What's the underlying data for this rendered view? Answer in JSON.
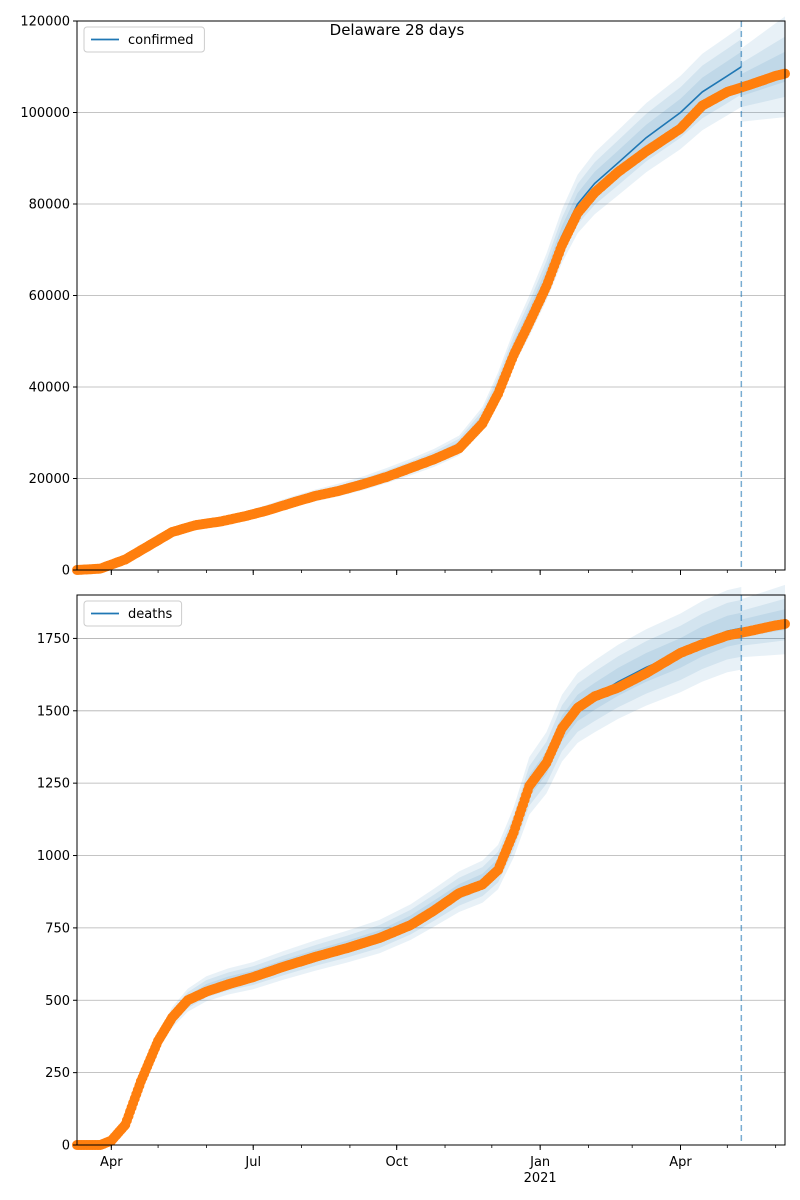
{
  "figure": {
    "title": "Delaware 28 days"
  },
  "colors": {
    "model": "#1f77b4",
    "observed": "#ff7f0e",
    "band": "#1f77b4",
    "grid": "#b0b0b0",
    "cutoff": "#1f77b4"
  },
  "chart_data": [
    {
      "type": "line",
      "title": "Delaware 28 days",
      "legend": {
        "label": "confirmed",
        "placement": "top-left"
      },
      "xlabel": "",
      "ylabel": "",
      "x_ticks": [
        "Apr",
        "Jul",
        "Oct",
        "Jan",
        "Apr"
      ],
      "x_tick_year": "2021",
      "x_tick_dates": [
        "2020-04-01",
        "2020-07-01",
        "2020-10-01",
        "2021-01-01",
        "2021-04-01"
      ],
      "xlim": [
        "2020-03-10",
        "2021-06-07"
      ],
      "ylim": [
        0,
        120000
      ],
      "y_ticks": [
        0,
        20000,
        40000,
        60000,
        80000,
        100000,
        120000
      ],
      "grid": "horizontal",
      "cutoff_date": "2021-05-10",
      "series": [
        {
          "name": "confirmed",
          "style": "line",
          "points": [
            [
              "2020-03-10",
              0
            ],
            [
              "2020-03-25",
              300
            ],
            [
              "2020-04-10",
              2500
            ],
            [
              "2020-04-25",
              5500
            ],
            [
              "2020-05-10",
              8500
            ],
            [
              "2020-05-25",
              10000
            ],
            [
              "2020-06-10",
              10800
            ],
            [
              "2020-06-25",
              11800
            ],
            [
              "2020-07-10",
              13200
            ],
            [
              "2020-07-25",
              14800
            ],
            [
              "2020-08-10",
              16300
            ],
            [
              "2020-08-25",
              17500
            ],
            [
              "2020-09-10",
              19000
            ],
            [
              "2020-09-25",
              20700
            ],
            [
              "2020-10-10",
              22500
            ],
            [
              "2020-10-25",
              24500
            ],
            [
              "2020-11-10",
              27200
            ],
            [
              "2020-11-25",
              33000
            ],
            [
              "2020-12-05",
              40000
            ],
            [
              "2020-12-15",
              48500
            ],
            [
              "2020-12-25",
              55500
            ],
            [
              "2021-01-05",
              64000
            ],
            [
              "2021-01-15",
              73000
            ],
            [
              "2021-01-25",
              80000
            ],
            [
              "2021-02-05",
              84500
            ],
            [
              "2021-02-20",
              89000
            ],
            [
              "2021-03-10",
              94500
            ],
            [
              "2021-04-01",
              100000
            ],
            [
              "2021-04-15",
              104500
            ],
            [
              "2021-05-01",
              108000
            ],
            [
              "2021-05-10",
              110000
            ]
          ],
          "band_widths": [
            0.08,
            0.055,
            0.03
          ]
        },
        {
          "name": "",
          "style": "dots",
          "points": [
            [
              "2020-03-10",
              0
            ],
            [
              "2020-03-25",
              300
            ],
            [
              "2020-04-10",
              2300
            ],
            [
              "2020-04-25",
              5300
            ],
            [
              "2020-05-10",
              8300
            ],
            [
              "2020-05-25",
              9800
            ],
            [
              "2020-06-10",
              10600
            ],
            [
              "2020-06-25",
              11700
            ],
            [
              "2020-07-10",
              13000
            ],
            [
              "2020-07-25",
              14600
            ],
            [
              "2020-08-10",
              16200
            ],
            [
              "2020-08-25",
              17300
            ],
            [
              "2020-09-10",
              18800
            ],
            [
              "2020-09-25",
              20400
            ],
            [
              "2020-10-10",
              22300
            ],
            [
              "2020-10-25",
              24200
            ],
            [
              "2020-11-10",
              26600
            ],
            [
              "2020-11-25",
              32000
            ],
            [
              "2020-12-05",
              38500
            ],
            [
              "2020-12-15",
              47000
            ],
            [
              "2020-12-25",
              54000
            ],
            [
              "2021-01-05",
              62000
            ],
            [
              "2021-01-15",
              71000
            ],
            [
              "2021-01-25",
              78000
            ],
            [
              "2021-02-05",
              82500
            ],
            [
              "2021-02-20",
              87000
            ],
            [
              "2021-03-10",
              91500
            ],
            [
              "2021-04-01",
              96500
            ],
            [
              "2021-04-15",
              101500
            ],
            [
              "2021-05-01",
              104500
            ],
            [
              "2021-05-15",
              106000
            ],
            [
              "2021-06-01",
              108000
            ],
            [
              "2021-06-07",
              108500
            ]
          ]
        }
      ],
      "forecast_band": {
        "start": "2021-05-10",
        "end": "2021-06-07",
        "center_start": 106000,
        "center_end": 110000,
        "half_width_start": 8000,
        "half_width_end": 11000
      }
    },
    {
      "type": "line",
      "title": "",
      "legend": {
        "label": "deaths",
        "placement": "top-left"
      },
      "xlabel": "",
      "ylabel": "",
      "x_ticks": [
        "Apr",
        "Jul",
        "Oct",
        "Jan",
        "Apr"
      ],
      "x_tick_year": "2021",
      "x_tick_dates": [
        "2020-04-01",
        "2020-07-01",
        "2020-10-01",
        "2021-01-01",
        "2021-04-01"
      ],
      "xlim": [
        "2020-03-10",
        "2021-06-07"
      ],
      "ylim": [
        0,
        1900
      ],
      "y_ticks": [
        0,
        250,
        500,
        750,
        1000,
        1250,
        1500,
        1750
      ],
      "grid": "horizontal",
      "cutoff_date": "2021-05-10",
      "series": [
        {
          "name": "deaths",
          "style": "line",
          "points": [
            [
              "2020-03-10",
              0
            ],
            [
              "2020-03-25",
              0
            ],
            [
              "2020-04-01",
              15
            ],
            [
              "2020-04-10",
              70
            ],
            [
              "2020-04-20",
              220
            ],
            [
              "2020-05-01",
              360
            ],
            [
              "2020-05-10",
              440
            ],
            [
              "2020-05-20",
              500
            ],
            [
              "2020-06-01",
              540
            ],
            [
              "2020-06-15",
              565
            ],
            [
              "2020-07-01",
              585
            ],
            [
              "2020-07-20",
              620
            ],
            [
              "2020-08-10",
              655
            ],
            [
              "2020-08-30",
              685
            ],
            [
              "2020-09-20",
              720
            ],
            [
              "2020-10-10",
              770
            ],
            [
              "2020-10-25",
              820
            ],
            [
              "2020-11-10",
              875
            ],
            [
              "2020-11-25",
              910
            ],
            [
              "2020-12-05",
              960
            ],
            [
              "2020-12-15",
              1080
            ],
            [
              "2020-12-25",
              1240
            ],
            [
              "2021-01-05",
              1320
            ],
            [
              "2021-01-15",
              1440
            ],
            [
              "2021-01-25",
              1510
            ],
            [
              "2021-02-05",
              1550
            ],
            [
              "2021-02-20",
              1600
            ],
            [
              "2021-03-10",
              1650
            ],
            [
              "2021-04-01",
              1700
            ],
            [
              "2021-04-15",
              1740
            ],
            [
              "2021-05-01",
              1775
            ],
            [
              "2021-05-10",
              1785
            ]
          ],
          "band_widths": [
            0.08,
            0.055,
            0.03
          ]
        },
        {
          "name": "",
          "style": "dots",
          "points": [
            [
              "2020-03-10",
              0
            ],
            [
              "2020-03-25",
              0
            ],
            [
              "2020-04-01",
              15
            ],
            [
              "2020-04-10",
              70
            ],
            [
              "2020-04-20",
              220
            ],
            [
              "2020-05-01",
              360
            ],
            [
              "2020-05-10",
              440
            ],
            [
              "2020-05-20",
              500
            ],
            [
              "2020-06-01",
              530
            ],
            [
              "2020-06-15",
              555
            ],
            [
              "2020-07-01",
              580
            ],
            [
              "2020-07-20",
              615
            ],
            [
              "2020-08-10",
              650
            ],
            [
              "2020-08-30",
              680
            ],
            [
              "2020-09-20",
              715
            ],
            [
              "2020-10-10",
              760
            ],
            [
              "2020-10-25",
              810
            ],
            [
              "2020-11-10",
              870
            ],
            [
              "2020-11-25",
              900
            ],
            [
              "2020-12-05",
              950
            ],
            [
              "2020-12-15",
              1080
            ],
            [
              "2020-12-25",
              1240
            ],
            [
              "2021-01-05",
              1320
            ],
            [
              "2021-01-15",
              1440
            ],
            [
              "2021-01-25",
              1510
            ],
            [
              "2021-02-05",
              1550
            ],
            [
              "2021-02-20",
              1580
            ],
            [
              "2021-03-10",
              1630
            ],
            [
              "2021-04-01",
              1700
            ],
            [
              "2021-04-15",
              1730
            ],
            [
              "2021-05-01",
              1760
            ],
            [
              "2021-05-15",
              1775
            ],
            [
              "2021-06-01",
              1795
            ],
            [
              "2021-06-07",
              1800
            ]
          ]
        }
      ],
      "forecast_band": {
        "start": "2021-05-10",
        "end": "2021-06-07",
        "center_start": 1785,
        "center_end": 1815,
        "half_width_start": 100,
        "half_width_end": 120
      }
    }
  ]
}
